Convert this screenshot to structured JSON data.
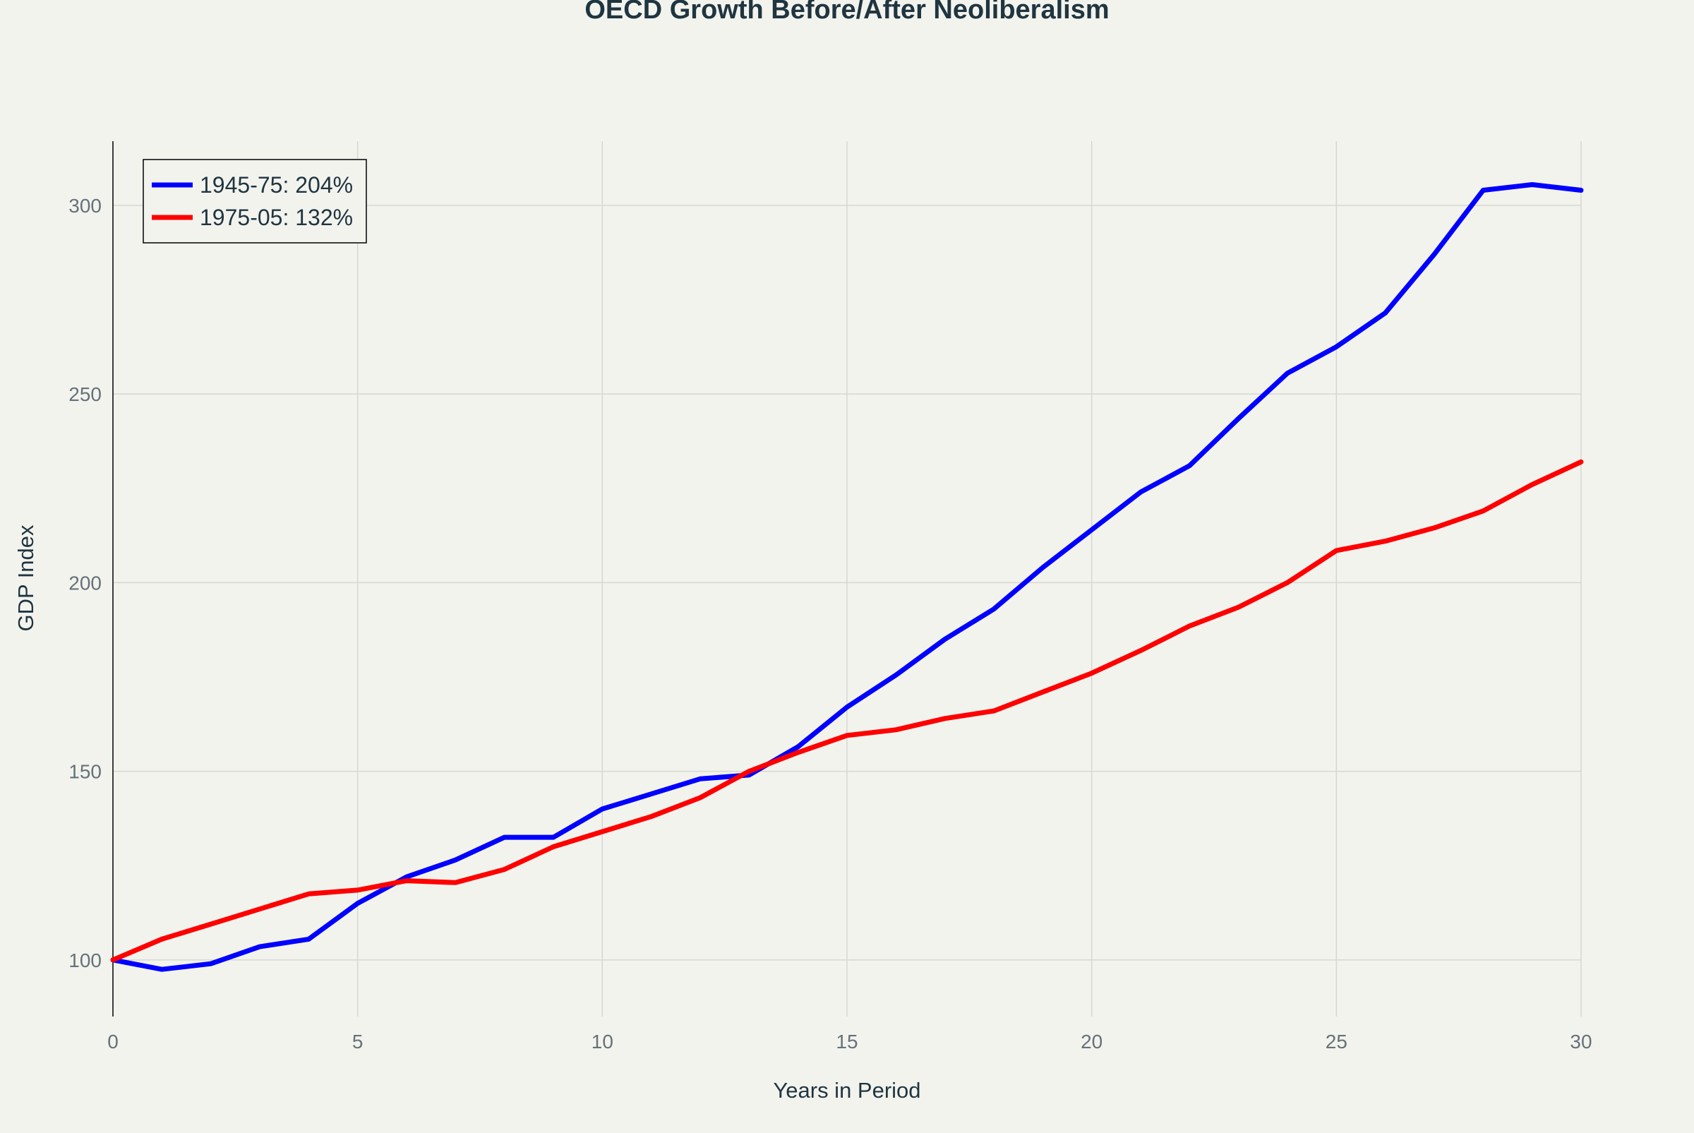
{
  "chart_data": {
    "type": "line",
    "title": "OECD Growth Before/After Neoliberalism",
    "xlabel": "Years in Period",
    "ylabel": "GDP Index",
    "xlim": [
      0,
      30
    ],
    "ylim": [
      85,
      317
    ],
    "x_ticks": [
      0,
      5,
      10,
      15,
      20,
      25,
      30
    ],
    "y_ticks": [
      100,
      150,
      200,
      250,
      300
    ],
    "grid": true,
    "legend_position": "top-left",
    "x": [
      0,
      1,
      2,
      3,
      4,
      5,
      6,
      7,
      8,
      9,
      10,
      11,
      12,
      13,
      14,
      15,
      16,
      17,
      18,
      19,
      20,
      21,
      22,
      23,
      24,
      25,
      26,
      27,
      28,
      29,
      30
    ],
    "series": [
      {
        "name": "1945-75: 204%",
        "color": "#0000ff",
        "values": [
          100,
          97.5,
          99,
          103.5,
          105.5,
          115,
          122,
          126.5,
          132.5,
          132.5,
          140,
          144,
          148,
          149,
          156.5,
          167,
          175.5,
          185,
          193,
          204,
          214,
          224,
          231,
          243.5,
          255.5,
          262.5,
          271.5,
          287,
          304,
          305.5,
          304
        ]
      },
      {
        "name": "1975-05: 132%",
        "color": "#ff0000",
        "values": [
          100,
          105.5,
          109.5,
          113.5,
          117.5,
          118.5,
          121,
          120.5,
          124,
          130,
          134,
          138,
          143,
          150,
          155,
          159.5,
          161,
          164,
          166,
          171,
          176,
          182,
          188.5,
          193.5,
          200,
          208.5,
          211,
          214.5,
          219,
          226,
          232
        ]
      }
    ]
  }
}
